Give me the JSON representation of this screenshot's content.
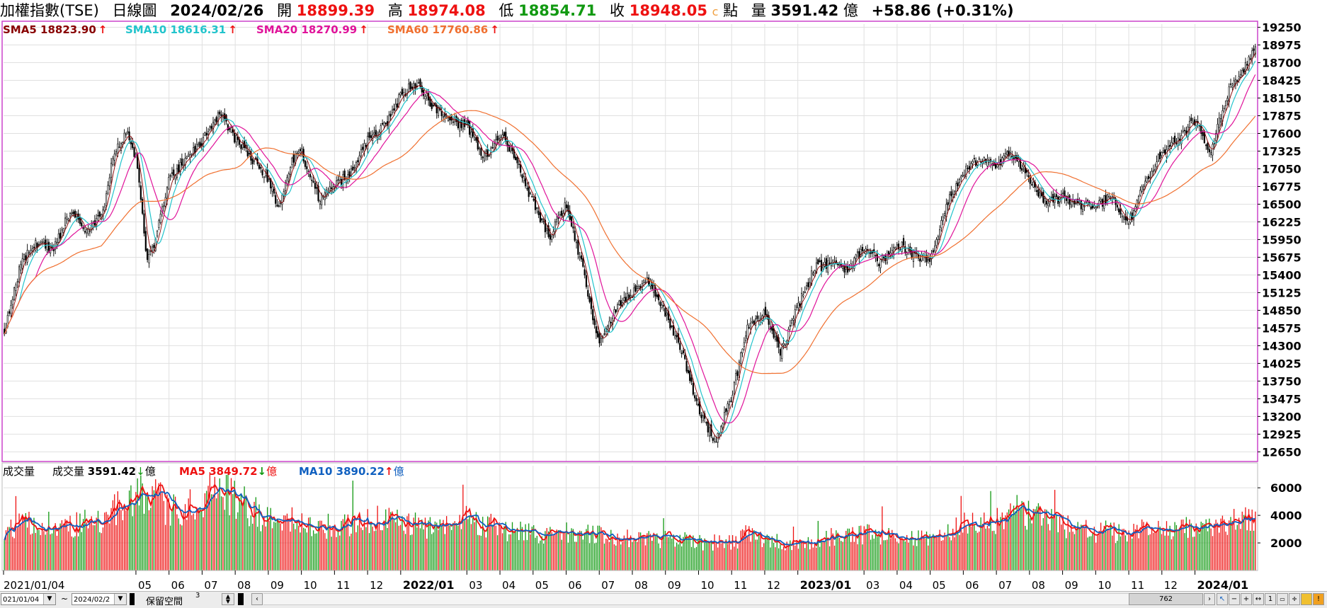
{
  "header": {
    "index_name": "加權指數(TSE)",
    "period": "日線圖",
    "date": "2024/02/26",
    "open_label": "開",
    "open_value": "18899.39",
    "high_label": "高",
    "high_value": "18974.08",
    "low_label": "低",
    "low_value": "18854.71",
    "close_label": "收",
    "close_value": "18948.05",
    "close_mark": "c",
    "unit_label": "點",
    "volume_label": "量",
    "volume_value": "3591.42",
    "volume_unit": "億",
    "change": "+58.86 (+0.31%)"
  },
  "colors": {
    "up": "#ee1111",
    "down": "#119911",
    "price_border": "#cc44cc",
    "sma5": "#880000",
    "sma10": "#22c4cc",
    "sma20": "#e0139a",
    "sma60": "#f07030",
    "vol_ma5": "#ee1111",
    "vol_ma10": "#1060c0",
    "grid": "#e0e0e0"
  },
  "price_legend": [
    {
      "label": "SMA5",
      "value": "18823.90",
      "arrow": "↑",
      "color": "#880000"
    },
    {
      "label": "SMA10",
      "value": "18616.31",
      "arrow": "↑",
      "color": "#22c4cc"
    },
    {
      "label": "SMA20",
      "value": "18270.99",
      "arrow": "↑",
      "color": "#e0139a"
    },
    {
      "label": "SMA60",
      "value": "17760.86",
      "arrow": "↑",
      "color": "#f07030"
    }
  ],
  "volume_legend": {
    "panel_title": "成交量",
    "vol_label": "成交量",
    "vol_value": "3591.42",
    "vol_arrow": "↓",
    "vol_unit": "億",
    "ma5_label": "MA5",
    "ma5_value": "3849.72",
    "ma5_arrow": "↓",
    "ma5_unit": "億",
    "ma10_label": "MA10",
    "ma10_value": "3890.22",
    "ma10_arrow": "↑",
    "ma10_unit": "億"
  },
  "x_axis": {
    "start_label": "2021/01/04",
    "labels": [
      {
        "text": "05",
        "month": 4,
        "bold": false
      },
      {
        "text": "06",
        "month": 5,
        "bold": false
      },
      {
        "text": "07",
        "month": 6,
        "bold": false
      },
      {
        "text": "08",
        "month": 7,
        "bold": false
      },
      {
        "text": "09",
        "month": 8,
        "bold": false
      },
      {
        "text": "10",
        "month": 9,
        "bold": false
      },
      {
        "text": "11",
        "month": 10,
        "bold": false
      },
      {
        "text": "12",
        "month": 11,
        "bold": false
      },
      {
        "text": "2022/01",
        "month": 12,
        "bold": true
      },
      {
        "text": "03",
        "month": 14,
        "bold": false
      },
      {
        "text": "04",
        "month": 15,
        "bold": false
      },
      {
        "text": "05",
        "month": 16,
        "bold": false
      },
      {
        "text": "06",
        "month": 17,
        "bold": false
      },
      {
        "text": "07",
        "month": 18,
        "bold": false
      },
      {
        "text": "08",
        "month": 19,
        "bold": false
      },
      {
        "text": "09",
        "month": 20,
        "bold": false
      },
      {
        "text": "10",
        "month": 21,
        "bold": false
      },
      {
        "text": "11",
        "month": 22,
        "bold": false
      },
      {
        "text": "12",
        "month": 23,
        "bold": false
      },
      {
        "text": "2023/01",
        "month": 24,
        "bold": true
      },
      {
        "text": "03",
        "month": 26,
        "bold": false
      },
      {
        "text": "04",
        "month": 27,
        "bold": false
      },
      {
        "text": "05",
        "month": 28,
        "bold": false
      },
      {
        "text": "06",
        "month": 29,
        "bold": false
      },
      {
        "text": "07",
        "month": 30,
        "bold": false
      },
      {
        "text": "08",
        "month": 31,
        "bold": false
      },
      {
        "text": "09",
        "month": 32,
        "bold": false
      },
      {
        "text": "10",
        "month": 33,
        "bold": false
      },
      {
        "text": "11",
        "month": 34,
        "bold": false
      },
      {
        "text": "12",
        "month": 35,
        "bold": false
      },
      {
        "text": "2024/01",
        "month": 36,
        "bold": true
      }
    ]
  },
  "bottom_bar": {
    "start_date": "021/01/04",
    "tilde": "~",
    "end_date": "2024/02/2",
    "reserve_label": "保留空間",
    "reserve_value": "3",
    "count_value": "762",
    "zoom_label": "1"
  },
  "chart_data": [
    {
      "type": "candlestick",
      "title": "加權指數(TSE) 日線圖",
      "x_range": [
        "2021/01/04",
        "2024/02/26"
      ],
      "ylim": [
        12500,
        19300
      ],
      "y_ticks": [
        12650,
        12925,
        13200,
        13475,
        13750,
        14025,
        14300,
        14575,
        14850,
        15125,
        15400,
        15675,
        15950,
        16225,
        16500,
        16775,
        17050,
        17325,
        17600,
        17875,
        18150,
        18425,
        18700,
        18975,
        19250
      ],
      "grid": true,
      "close_anchors": [
        {
          "month": 0.0,
          "close": 14500
        },
        {
          "month": 0.5,
          "close": 15600
        },
        {
          "month": 1.0,
          "close": 15900
        },
        {
          "month": 1.5,
          "close": 15800
        },
        {
          "month": 2.0,
          "close": 16400
        },
        {
          "month": 2.5,
          "close": 16100
        },
        {
          "month": 3.0,
          "close": 16400
        },
        {
          "month": 3.3,
          "close": 17300
        },
        {
          "month": 3.7,
          "close": 17600
        },
        {
          "month": 4.0,
          "close": 17200
        },
        {
          "month": 4.3,
          "close": 15700
        },
        {
          "month": 4.5,
          "close": 15800
        },
        {
          "month": 5.0,
          "close": 16900
        },
        {
          "month": 5.5,
          "close": 17200
        },
        {
          "month": 6.0,
          "close": 17500
        },
        {
          "month": 6.5,
          "close": 17900
        },
        {
          "month": 7.0,
          "close": 17500
        },
        {
          "month": 7.5,
          "close": 17200
        },
        {
          "month": 8.0,
          "close": 16900
        },
        {
          "month": 8.3,
          "close": 16400
        },
        {
          "month": 8.7,
          "close": 17200
        },
        {
          "month": 9.0,
          "close": 17300
        },
        {
          "month": 9.5,
          "close": 16600
        },
        {
          "month": 10.0,
          "close": 16800
        },
        {
          "month": 10.5,
          "close": 17000
        },
        {
          "month": 11.0,
          "close": 17500
        },
        {
          "month": 11.5,
          "close": 17700
        },
        {
          "month": 12.0,
          "close": 18200
        },
        {
          "month": 12.5,
          "close": 18400
        },
        {
          "month": 13.0,
          "close": 18000
        },
        {
          "month": 13.5,
          "close": 17800
        },
        {
          "month": 14.0,
          "close": 17700
        },
        {
          "month": 14.5,
          "close": 17200
        },
        {
          "month": 15.0,
          "close": 17600
        },
        {
          "month": 15.5,
          "close": 17200
        },
        {
          "month": 16.0,
          "close": 16500
        },
        {
          "month": 16.5,
          "close": 16000
        },
        {
          "month": 17.0,
          "close": 16500
        },
        {
          "month": 17.5,
          "close": 15500
        },
        {
          "month": 18.0,
          "close": 14300
        },
        {
          "month": 18.5,
          "close": 14900
        },
        {
          "month": 19.0,
          "close": 15100
        },
        {
          "month": 19.5,
          "close": 15300
        },
        {
          "month": 20.0,
          "close": 14800
        },
        {
          "month": 20.5,
          "close": 14200
        },
        {
          "month": 21.0,
          "close": 13300
        },
        {
          "month": 21.5,
          "close": 12800
        },
        {
          "month": 22.0,
          "close": 13500
        },
        {
          "month": 22.5,
          "close": 14600
        },
        {
          "month": 23.0,
          "close": 14800
        },
        {
          "month": 23.5,
          "close": 14200
        },
        {
          "month": 24.0,
          "close": 14900
        },
        {
          "month": 24.5,
          "close": 15500
        },
        {
          "month": 25.0,
          "close": 15600
        },
        {
          "month": 25.5,
          "close": 15500
        },
        {
          "month": 26.0,
          "close": 15800
        },
        {
          "month": 26.5,
          "close": 15600
        },
        {
          "month": 27.0,
          "close": 15900
        },
        {
          "month": 27.5,
          "close": 15700
        },
        {
          "month": 28.0,
          "close": 15600
        },
        {
          "month": 28.5,
          "close": 16500
        },
        {
          "month": 29.0,
          "close": 17000
        },
        {
          "month": 29.5,
          "close": 17200
        },
        {
          "month": 30.0,
          "close": 17100
        },
        {
          "month": 30.5,
          "close": 17300
        },
        {
          "month": 31.0,
          "close": 16900
        },
        {
          "month": 31.5,
          "close": 16500
        },
        {
          "month": 32.0,
          "close": 16600
        },
        {
          "month": 32.5,
          "close": 16500
        },
        {
          "month": 33.0,
          "close": 16500
        },
        {
          "month": 33.5,
          "close": 16600
        },
        {
          "month": 34.0,
          "close": 16200
        },
        {
          "month": 34.5,
          "close": 16800
        },
        {
          "month": 35.0,
          "close": 17300
        },
        {
          "month": 35.5,
          "close": 17500
        },
        {
          "month": 36.0,
          "close": 17800
        },
        {
          "month": 36.5,
          "close": 17300
        },
        {
          "month": 37.0,
          "close": 18200
        },
        {
          "month": 37.5,
          "close": 18600
        },
        {
          "month": 37.85,
          "close": 18948
        }
      ],
      "last_close": 18948.05,
      "series": [
        {
          "name": "SMA5",
          "period": 5,
          "color": "#880000"
        },
        {
          "name": "SMA10",
          "period": 10,
          "color": "#22c4cc"
        },
        {
          "name": "SMA20",
          "period": 20,
          "color": "#e0139a"
        },
        {
          "name": "SMA60",
          "period": 60,
          "color": "#f07030"
        }
      ]
    },
    {
      "type": "bar",
      "title": "成交量",
      "unit": "億",
      "y_ticks": [
        2000,
        4000,
        6000
      ],
      "ylim": [
        0,
        7600
      ],
      "vol_anchors": [
        {
          "month": 0.0,
          "vol": 2900
        },
        {
          "month": 1.0,
          "vol": 3500
        },
        {
          "month": 2.0,
          "vol": 3300
        },
        {
          "month": 3.0,
          "vol": 3400
        },
        {
          "month": 3.5,
          "vol": 4600
        },
        {
          "month": 4.0,
          "vol": 5400
        },
        {
          "month": 4.5,
          "vol": 5500
        },
        {
          "month": 5.0,
          "vol": 4200
        },
        {
          "month": 5.5,
          "vol": 4600
        },
        {
          "month": 6.0,
          "vol": 5200
        },
        {
          "month": 6.5,
          "vol": 5800
        },
        {
          "month": 7.0,
          "vol": 5100
        },
        {
          "month": 7.5,
          "vol": 4200
        },
        {
          "month": 8.0,
          "vol": 3700
        },
        {
          "month": 9.0,
          "vol": 3400
        },
        {
          "month": 10.0,
          "vol": 3100
        },
        {
          "month": 11.0,
          "vol": 3700
        },
        {
          "month": 12.0,
          "vol": 3300
        },
        {
          "month": 13.0,
          "vol": 3000
        },
        {
          "month": 14.0,
          "vol": 3800
        },
        {
          "month": 15.0,
          "vol": 2900
        },
        {
          "month": 16.0,
          "vol": 2600
        },
        {
          "month": 17.0,
          "vol": 2800
        },
        {
          "month": 18.0,
          "vol": 2600
        },
        {
          "month": 19.0,
          "vol": 2300
        },
        {
          "month": 20.0,
          "vol": 2100
        },
        {
          "month": 21.0,
          "vol": 2000
        },
        {
          "month": 22.0,
          "vol": 2000
        },
        {
          "month": 22.5,
          "vol": 2600
        },
        {
          "month": 23.0,
          "vol": 2300
        },
        {
          "month": 24.0,
          "vol": 1800
        },
        {
          "month": 25.0,
          "vol": 2400
        },
        {
          "month": 26.0,
          "vol": 2600
        },
        {
          "month": 27.0,
          "vol": 2300
        },
        {
          "month": 28.0,
          "vol": 2200
        },
        {
          "month": 29.0,
          "vol": 3300
        },
        {
          "month": 30.0,
          "vol": 3500
        },
        {
          "month": 31.0,
          "vol": 4000
        },
        {
          "month": 32.0,
          "vol": 3100
        },
        {
          "month": 33.0,
          "vol": 2800
        },
        {
          "month": 34.0,
          "vol": 2700
        },
        {
          "month": 35.0,
          "vol": 3100
        },
        {
          "month": 36.0,
          "vol": 3100
        },
        {
          "month": 36.5,
          "vol": 3000
        },
        {
          "month": 37.0,
          "vol": 3500
        },
        {
          "month": 37.85,
          "vol": 3600
        }
      ],
      "series": [
        {
          "name": "MA5",
          "period": 5,
          "color": "#ee1111"
        },
        {
          "name": "MA10",
          "period": 10,
          "color": "#1060c0"
        }
      ]
    }
  ]
}
